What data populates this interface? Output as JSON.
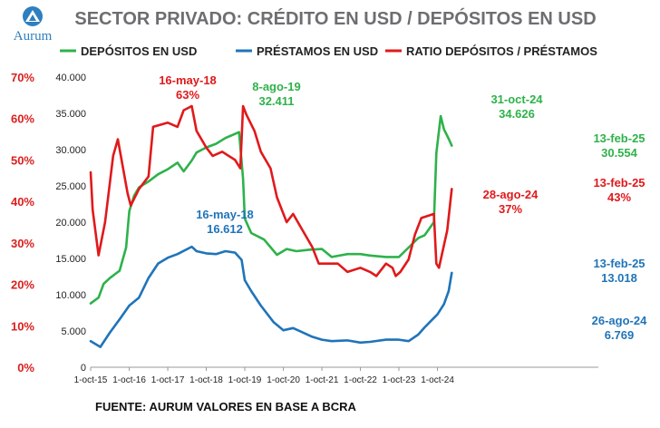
{
  "brand": {
    "name": "Aurum"
  },
  "chart_data": {
    "type": "line",
    "title": "SECTOR PRIVADO: CRÉDITO EN USD / DEPÓSITOS EN USD",
    "source": "FUENTE: AURUM VALORES EN BASE A BCRA",
    "y_left_ticks": [
      "0%",
      "10%",
      "20%",
      "30%",
      "40%",
      "50%",
      "60%",
      "70%"
    ],
    "y_right_ticks": [
      "0",
      "5.000",
      "10.000",
      "15.000",
      "20.000",
      "25.000",
      "30.000",
      "35.000",
      "40.000"
    ],
    "x_ticks": [
      "1-oct-15",
      "1-oct-16",
      "1-oct-17",
      "1-oct-18",
      "1-oct-19",
      "1-oct-20",
      "1-oct-21",
      "1-oct-22",
      "1-oct-23",
      "1-oct-24"
    ],
    "ylim_left": [
      0,
      0.7
    ],
    "ylim_right": [
      0,
      40000
    ],
    "colors": {
      "depositos": "#2eb24a",
      "prestamos": "#1f74b9",
      "ratio": "#e0191b"
    },
    "series": [
      {
        "name": "DEPÓSITOS EN USD",
        "key": "depositos",
        "axis": "right",
        "x": [
          "2015-10-01",
          "2015-12-15",
          "2016-02-01",
          "2016-04-01",
          "2016-07-01",
          "2016-09-01",
          "2016-10-01",
          "2016-11-15",
          "2017-01-01",
          "2017-04-01",
          "2017-07-01",
          "2017-10-01",
          "2018-01-01",
          "2018-03-01",
          "2018-05-16",
          "2018-07-01",
          "2018-10-01",
          "2019-01-01",
          "2019-04-01",
          "2019-08-08",
          "2019-09-15",
          "2019-10-01",
          "2019-12-01",
          "2020-04-01",
          "2020-08-01",
          "2020-11-01",
          "2021-02-01",
          "2021-06-01",
          "2021-10-01",
          "2022-01-01",
          "2022-06-01",
          "2022-10-01",
          "2023-01-01",
          "2023-06-01",
          "2023-10-01",
          "2024-01-01",
          "2024-04-01",
          "2024-06-01",
          "2024-08-28",
          "2024-09-20",
          "2024-10-31",
          "2024-12-01",
          "2025-01-15",
          "2025-02-13"
        ],
        "values": [
          8800,
          9600,
          11500,
          12300,
          13300,
          16500,
          21500,
          23600,
          24800,
          25600,
          26600,
          27300,
          28200,
          27000,
          28500,
          29600,
          30300,
          30800,
          31600,
          32411,
          26000,
          20500,
          18500,
          17600,
          15500,
          16300,
          16000,
          16200,
          16300,
          15200,
          15600,
          15600,
          15400,
          15200,
          15200,
          16500,
          17800,
          18200,
          20000,
          29500,
          34626,
          32800,
          31500,
          30554
        ]
      },
      {
        "name": "PRÉSTAMOS EN USD",
        "key": "prestamos",
        "axis": "right",
        "x": [
          "2015-10-01",
          "2016-01-01",
          "2016-04-01",
          "2016-07-01",
          "2016-10-01",
          "2017-01-01",
          "2017-04-01",
          "2017-07-01",
          "2017-10-01",
          "2018-01-01",
          "2018-05-16",
          "2018-07-01",
          "2018-10-01",
          "2019-01-01",
          "2019-04-01",
          "2019-07-01",
          "2019-09-01",
          "2019-10-01",
          "2019-12-01",
          "2020-03-01",
          "2020-07-01",
          "2020-10-01",
          "2021-01-01",
          "2021-04-01",
          "2021-07-01",
          "2021-10-01",
          "2022-01-01",
          "2022-06-01",
          "2022-10-01",
          "2023-01-01",
          "2023-06-01",
          "2023-10-01",
          "2024-01-01",
          "2024-04-01",
          "2024-06-01",
          "2024-08-26",
          "2024-10-01",
          "2024-12-01",
          "2025-01-15",
          "2025-02-13"
        ],
        "values": [
          3600,
          2800,
          4800,
          6600,
          8500,
          9600,
          12300,
          14300,
          15100,
          15600,
          16612,
          16000,
          15700,
          15600,
          16000,
          15800,
          14800,
          12000,
          10500,
          8500,
          6200,
          5100,
          5400,
          4800,
          4200,
          3800,
          3600,
          3700,
          3400,
          3500,
          3800,
          3800,
          3600,
          4500,
          5500,
          6769,
          7300,
          8700,
          10500,
          13018
        ]
      },
      {
        "name": "RATIO DEPÓSITOS / PRÉSTAMOS",
        "key": "ratio",
        "axis": "left",
        "x": [
          "2015-10-01",
          "2015-10-20",
          "2015-12-15",
          "2016-02-15",
          "2016-05-01",
          "2016-06-15",
          "2016-09-15",
          "2016-10-15",
          "2017-01-01",
          "2017-04-01",
          "2017-05-15",
          "2017-10-01",
          "2018-01-01",
          "2018-03-01",
          "2018-05-16",
          "2018-07-01",
          "2018-10-01",
          "2018-12-01",
          "2019-03-01",
          "2019-07-01",
          "2019-08-20",
          "2019-09-15",
          "2019-10-15",
          "2020-01-01",
          "2020-03-01",
          "2020-06-01",
          "2020-08-01",
          "2020-11-01",
          "2021-01-01",
          "2021-04-01",
          "2021-07-01",
          "2021-09-01",
          "2021-12-01",
          "2022-03-01",
          "2022-06-01",
          "2022-10-01",
          "2023-01-01",
          "2023-03-01",
          "2023-06-01",
          "2023-08-01",
          "2023-09-01",
          "2023-10-15",
          "2024-01-01",
          "2024-03-01",
          "2024-05-01",
          "2024-08-28",
          "2024-09-20",
          "2024-10-15",
          "2025-01-01",
          "2025-02-13"
        ],
        "values": [
          0.47,
          0.38,
          0.27,
          0.35,
          0.51,
          0.55,
          0.42,
          0.39,
          0.43,
          0.46,
          0.58,
          0.59,
          0.58,
          0.62,
          0.63,
          0.57,
          0.53,
          0.51,
          0.52,
          0.5,
          0.48,
          0.63,
          0.61,
          0.57,
          0.52,
          0.48,
          0.41,
          0.35,
          0.37,
          0.33,
          0.29,
          0.25,
          0.25,
          0.25,
          0.23,
          0.24,
          0.23,
          0.22,
          0.25,
          0.24,
          0.22,
          0.23,
          0.26,
          0.32,
          0.36,
          0.37,
          0.25,
          0.24,
          0.33,
          0.43
        ]
      }
    ],
    "annotations": [
      {
        "key": "ratio",
        "date": "16-may-18",
        "value": "63%"
      },
      {
        "key": "depositos",
        "date": "8-ago-19",
        "value": "32.411"
      },
      {
        "key": "depositos",
        "date": "31-oct-24",
        "value": "34.626"
      },
      {
        "key": "depositos",
        "date": "13-feb-25",
        "value": "30.554"
      },
      {
        "key": "ratio",
        "date": "13-feb-25",
        "value": "43%"
      },
      {
        "key": "ratio",
        "date": "28-ago-24",
        "value": "37%"
      },
      {
        "key": "prestamos",
        "date": "16-may-18",
        "value": "16.612"
      },
      {
        "key": "prestamos",
        "date": "13-feb-25",
        "value": "13.018"
      },
      {
        "key": "prestamos",
        "date": "26-ago-24",
        "value": "6.769"
      }
    ]
  }
}
